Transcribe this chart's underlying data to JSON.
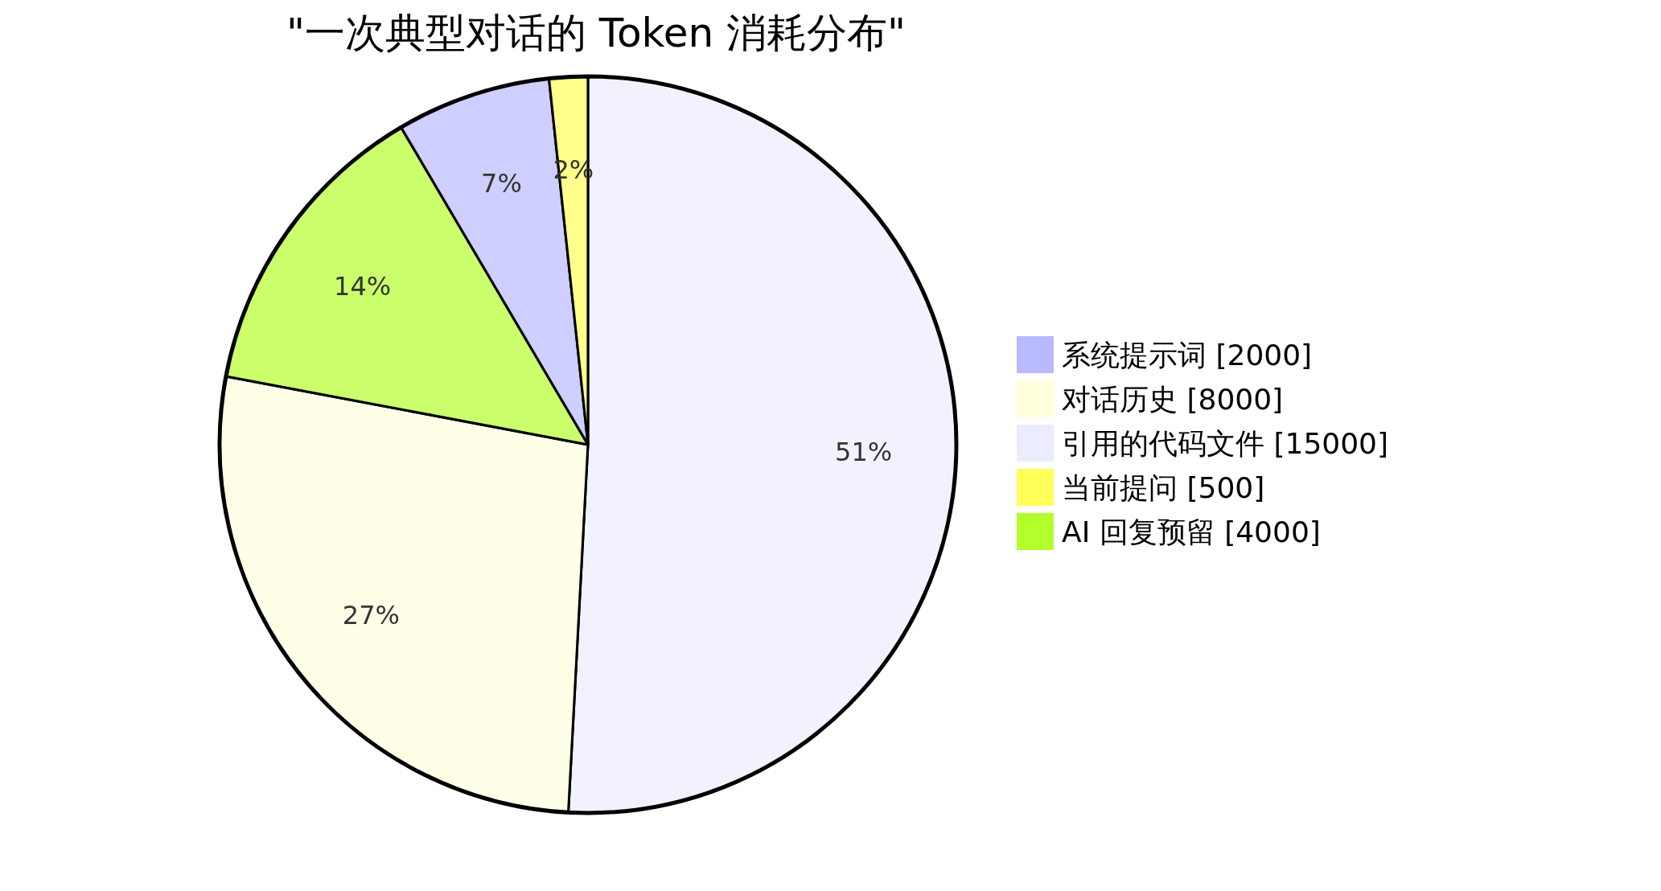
{
  "chart_data": {
    "type": "pie",
    "title": "\"一次典型对话的 Token 消耗分布\"",
    "categories": [
      "系统提示词 [2000]",
      "对话历史 [8000]",
      "引用的代码文件 [15000]",
      "当前提问 [500]",
      "AI 回复预留 [4000]"
    ],
    "values": [
      6.78,
      27.12,
      50.85,
      1.69,
      13.56
    ],
    "colors": [
      "#b9b9ff",
      "#ffffde",
      "#ececff",
      "#ffff5a",
      "#b3ff2c"
    ],
    "value_labels": [
      "7%",
      "27%",
      "51%",
      "2%",
      "14%"
    ],
    "legend": "right"
  }
}
